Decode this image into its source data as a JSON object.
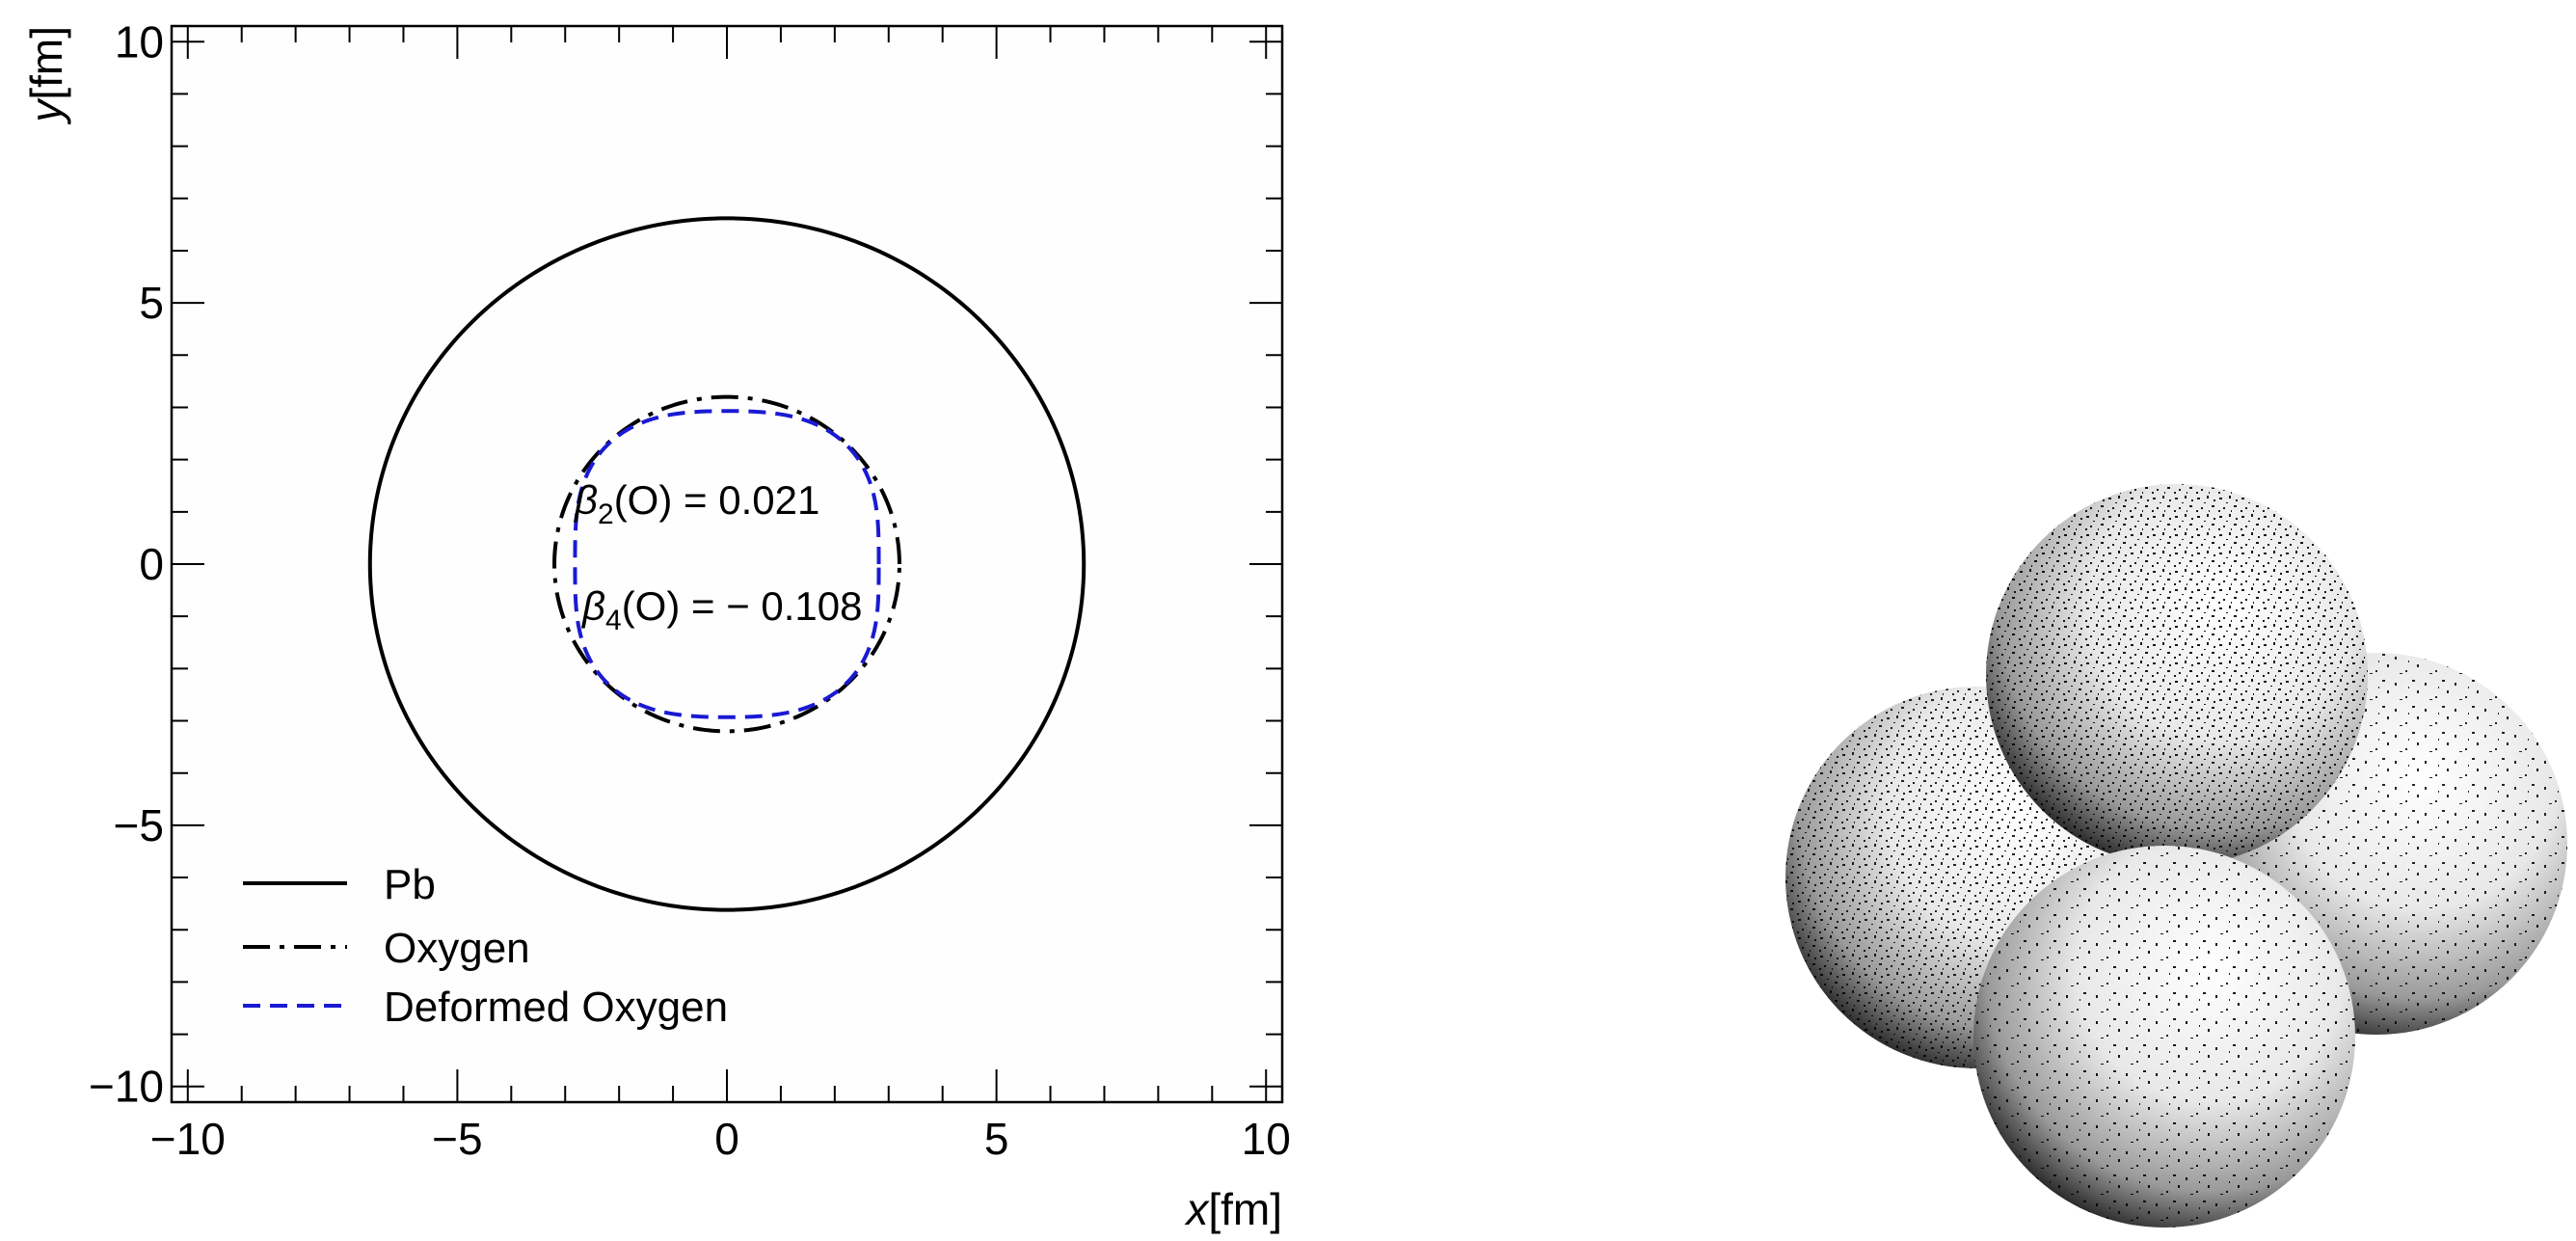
{
  "chart_data": {
    "type": "line",
    "title": "",
    "xlabel": "x[fm]",
    "ylabel": "y[fm]",
    "xlim": [
      -10.3,
      10.3
    ],
    "ylim": [
      -10.3,
      10.3
    ],
    "xticks": [
      -10,
      -5,
      0,
      5,
      10
    ],
    "yticks": [
      -10,
      -5,
      0,
      5,
      10
    ],
    "xtick_labels": [
      "−10",
      "−5",
      "0",
      "5",
      "10"
    ],
    "ytick_labels": [
      "−10",
      "−5",
      "0",
      "5",
      "10"
    ],
    "grid": false,
    "legend_position": "bottom-left",
    "series": [
      {
        "name": "Pb",
        "shape": "circle",
        "radius": 6.62,
        "color": "#000000",
        "style": "solid"
      },
      {
        "name": "Oxygen",
        "shape": "circle",
        "radius": 3.2,
        "color": "#000000",
        "style": "dash-dot"
      },
      {
        "name": "Deformed Oxygen",
        "shape": "deformed",
        "radius": 3.2,
        "beta2": 0.021,
        "beta4": -0.108,
        "color": "#1a1ad4",
        "style": "dashed"
      }
    ],
    "annotations": [
      {
        "label": "β2(O) = 0.021",
        "x": -3.2,
        "y": 1.2
      },
      {
        "label": "β4(O) = − 0.108",
        "x": -2.8,
        "y": -0.8
      }
    ]
  },
  "legend": {
    "items": [
      "Pb",
      "Oxygen",
      "Deformed Oxygen"
    ]
  },
  "annotations_text": {
    "beta2": {
      "sym": "β",
      "sub": "2",
      "mid": "(O)",
      "rest": " = 0.021"
    },
    "beta4": {
      "sym": "β",
      "sub": "4",
      "mid": "(O)",
      "rest": " = − 0.108"
    }
  },
  "nucleus_illustration": {
    "spheres": 4,
    "shading_color": "#000000"
  }
}
